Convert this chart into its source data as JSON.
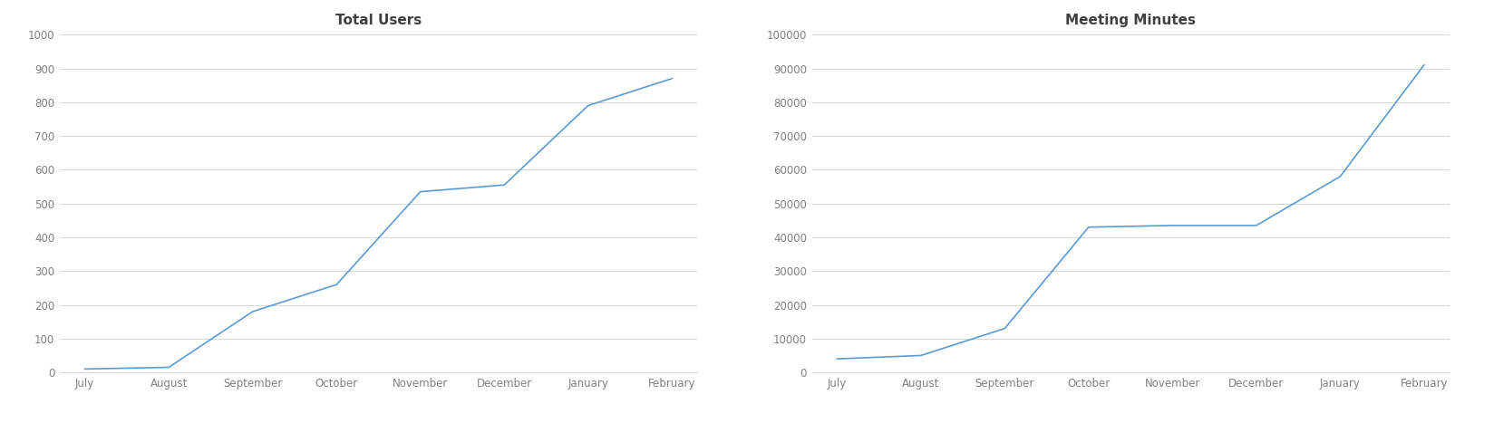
{
  "chart1": {
    "title": "Total Users",
    "months": [
      "July",
      "August",
      "September",
      "October",
      "November",
      "December",
      "January",
      "February"
    ],
    "values": [
      10,
      15,
      180,
      260,
      535,
      555,
      790,
      870
    ],
    "ylim": [
      0,
      1000
    ],
    "yticks": [
      0,
      100,
      200,
      300,
      400,
      500,
      600,
      700,
      800,
      900,
      1000
    ],
    "ytick_labels": [
      "0",
      "100",
      "200",
      "300",
      "400",
      "500",
      "600",
      "700",
      "800",
      "900",
      "1000"
    ],
    "line_color": "#5b9bd5",
    "title_color": "#404040",
    "title_fontsize": 11,
    "title_fontweight": "bold"
  },
  "chart2": {
    "title": "Meeting Minutes",
    "months": [
      "July",
      "August",
      "September",
      "October",
      "November",
      "December",
      "January",
      "February"
    ],
    "values": [
      4000,
      5000,
      13000,
      43000,
      43500,
      43500,
      58000,
      91000
    ],
    "ylim": [
      0,
      100000
    ],
    "yticks": [
      0,
      10000,
      20000,
      30000,
      40000,
      50000,
      60000,
      70000,
      80000,
      90000,
      100000
    ],
    "ytick_labels": [
      "0",
      "10000",
      "20000",
      "30000",
      "40000",
      "50000",
      "60000",
      "70000",
      "80000",
      "90000",
      "100000"
    ],
    "line_color": "#5b9bd5",
    "title_color": "#404040",
    "title_fontsize": 11,
    "title_fontweight": "bold"
  },
  "background_color": "#ffffff",
  "grid_color": "#d9d9d9",
  "tick_label_color": "#808080",
  "tick_label_fontsize": 8.5,
  "figsize": [
    16.48,
    4.78
  ],
  "dpi": 100
}
